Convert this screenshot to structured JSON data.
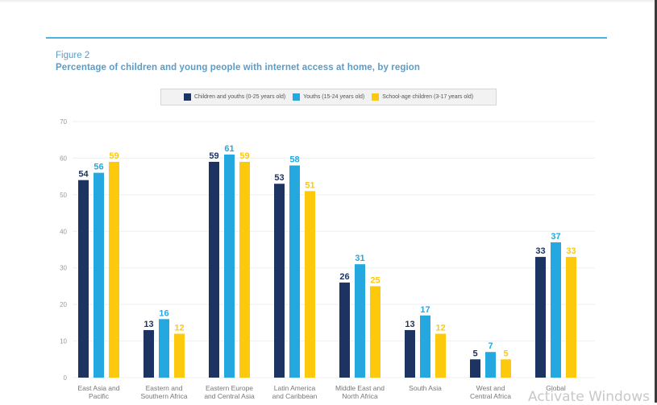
{
  "figure": {
    "label": "Figure 2",
    "title": "Percentage of children and young people with internet access at home, by region"
  },
  "watermark": "Activate Windows",
  "chart_data": {
    "type": "bar",
    "title": "Percentage of children and young people with internet access at home, by region",
    "xlabel": "",
    "ylabel": "",
    "ylim": [
      0,
      70
    ],
    "yticks": [
      0,
      10,
      20,
      30,
      40,
      50,
      60,
      70
    ],
    "grid": true,
    "legend_position": "top-center",
    "categories": [
      [
        "East Asia and",
        "Pacific"
      ],
      [
        "Eastern and",
        "Southern Africa"
      ],
      [
        "Eastern Europe",
        "and Central Asia"
      ],
      [
        "Latin America",
        "and Caribbean"
      ],
      [
        "Middle East and",
        "North Africa"
      ],
      [
        "South Asia"
      ],
      [
        "West and",
        "Central Africa"
      ],
      [
        "Global"
      ]
    ],
    "series": [
      {
        "name": "Children and youths (0-25 years old)",
        "color": "#1d3463",
        "values": [
          54,
          13,
          59,
          53,
          26,
          13,
          5,
          33
        ]
      },
      {
        "name": "Youths (15-24 years old)",
        "color": "#25a8e0",
        "values": [
          56,
          16,
          61,
          58,
          31,
          17,
          7,
          37
        ]
      },
      {
        "name": "School-age children (3-17 years old)",
        "color": "#fcc90d",
        "values": [
          59,
          12,
          59,
          51,
          25,
          12,
          5,
          33
        ]
      }
    ]
  }
}
